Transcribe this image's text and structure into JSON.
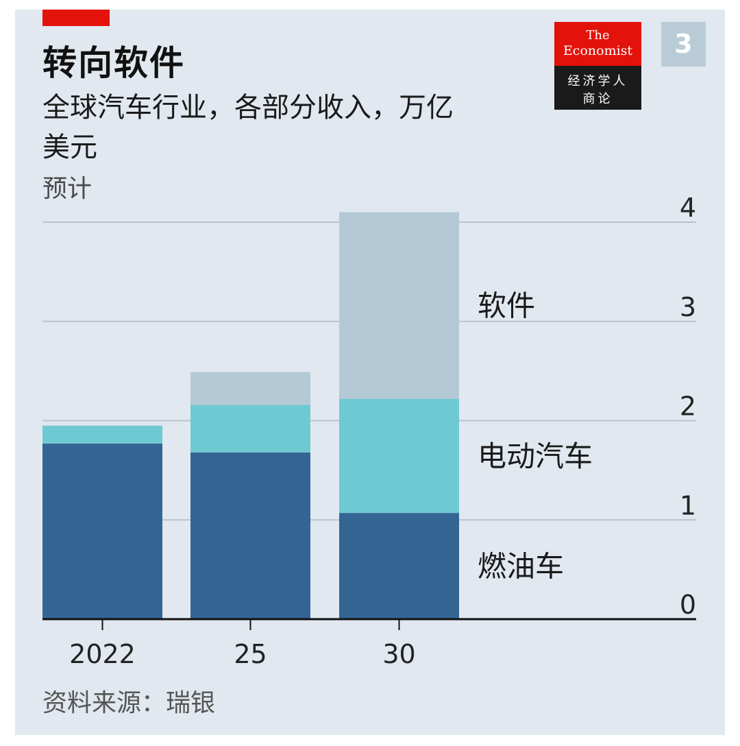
{
  "header": {
    "title": "转向软件",
    "subtitle": "全球汽车行业，各部分收入，万亿美元",
    "note": "预计"
  },
  "logo": {
    "line1": "The",
    "line2": "Economist",
    "line3": "经济学人",
    "line4": "商论"
  },
  "badge": "3",
  "source": "资料来源：瑞银",
  "colors": {
    "background": "#e1e8ef",
    "accent": "#e3120b",
    "combustion": "#336595",
    "ev": "#6fc9d3",
    "software": "#b3cad6"
  },
  "chart_data": {
    "type": "bar",
    "stacked": true,
    "categories": [
      "2022",
      "25",
      "30"
    ],
    "series": [
      {
        "name": "燃油车",
        "values": [
          1.77,
          1.68,
          1.07
        ]
      },
      {
        "name": "电动汽车",
        "values": [
          0.18,
          0.48,
          1.15
        ]
      },
      {
        "name": "软件",
        "values": [
          0.0,
          0.33,
          1.88
        ]
      }
    ],
    "title": "转向软件",
    "ylabel": "万亿美元",
    "ylim": [
      0,
      4
    ],
    "yticks": [
      0,
      1,
      2,
      3,
      4
    ],
    "ytick_labels": [
      "0",
      "1",
      "2",
      "3",
      "4"
    ],
    "grid": true,
    "legend": "right"
  }
}
